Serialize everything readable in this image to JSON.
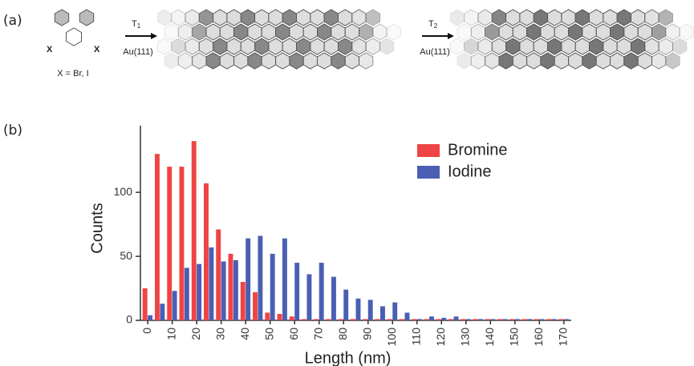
{
  "scheme": {
    "panel_a": "(a)",
    "panel_b": "(b)",
    "substituent_left": "X",
    "substituent_right": "X",
    "caption": "X = Br, I",
    "step1": {
      "label": "T",
      "subscript": "1",
      "substrate": "Au(111)"
    },
    "step2": {
      "label": "T",
      "subscript": "2",
      "substrate": "Au(111)"
    }
  },
  "chart_data": {
    "type": "bar",
    "x_label": "Length (nm)",
    "y_label": "Counts",
    "x": [
      0,
      5,
      10,
      15,
      20,
      25,
      30,
      35,
      40,
      45,
      50,
      55,
      60,
      65,
      70,
      75,
      80,
      85,
      90,
      95,
      100,
      105,
      110,
      115,
      120,
      125,
      130,
      135,
      140,
      145,
      150,
      155,
      160,
      165,
      170
    ],
    "series": [
      {
        "name": "Bromine",
        "color": "#ef4444",
        "values": [
          25,
          130,
          120,
          120,
          140,
          107,
          71,
          52,
          30,
          22,
          6,
          5,
          3,
          1,
          1,
          1,
          1,
          1,
          1,
          1,
          1,
          1,
          1,
          1,
          1,
          1,
          1,
          1,
          1,
          1,
          1,
          1,
          1,
          1,
          1
        ]
      },
      {
        "name": "Iodine",
        "color": "#4a5fb3",
        "values": [
          4,
          13,
          23,
          41,
          44,
          57,
          46,
          47,
          64,
          66,
          52,
          64,
          45,
          36,
          45,
          34,
          24,
          17,
          16,
          11,
          14,
          6,
          1,
          3,
          2,
          3,
          1,
          1,
          1,
          1,
          1,
          1,
          1,
          1,
          1
        ]
      }
    ],
    "xlim": [
      -3,
      173
    ],
    "ylim": [
      0,
      152
    ],
    "xticks": [
      0,
      10,
      20,
      30,
      40,
      50,
      60,
      70,
      80,
      90,
      100,
      110,
      120,
      130,
      140,
      150,
      160,
      170
    ],
    "yticks": [
      0,
      50,
      100
    ],
    "legend": "upper-right"
  }
}
